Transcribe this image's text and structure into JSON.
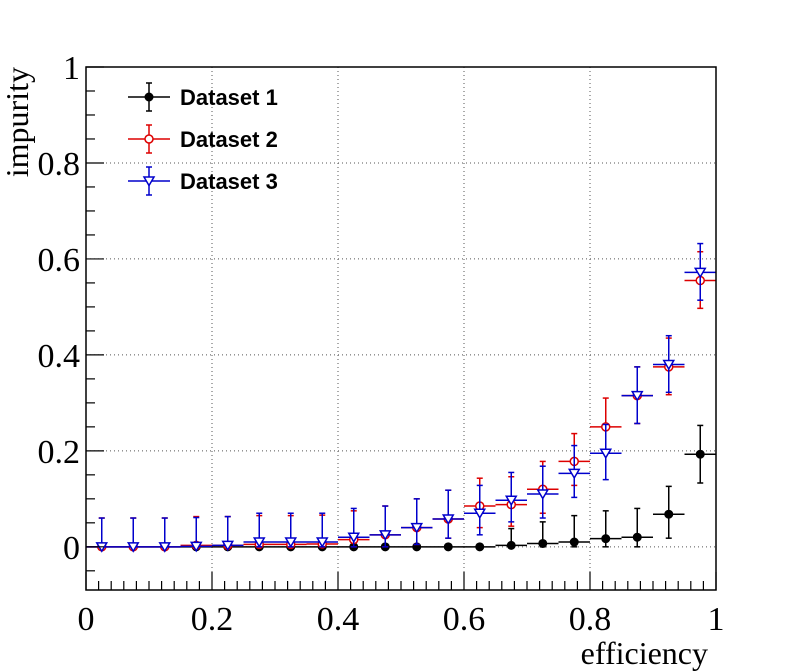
{
  "chart_data": {
    "type": "scatter",
    "xlabel": "efficiency",
    "ylabel": "impurity",
    "xlim": [
      0,
      1
    ],
    "ylim": [
      -0.09,
      1
    ],
    "grid": true,
    "legend_position": "top-left",
    "x_ticks": [
      "0",
      "0.2",
      "0.4",
      "0.6",
      "0.8",
      "1"
    ],
    "y_ticks": [
      "0",
      "0.2",
      "0.4",
      "0.6",
      "0.8",
      "1"
    ],
    "x_tick_values": [
      0,
      0.2,
      0.4,
      0.6,
      0.8,
      1.0
    ],
    "y_tick_values": [
      0,
      0.2,
      0.4,
      0.6,
      0.8,
      1.0
    ],
    "bin_half_width": 0.025,
    "series": [
      {
        "name": "Dataset 1",
        "color": "#000000",
        "marker": "filled-circle",
        "x": [
          0.025,
          0.075,
          0.125,
          0.175,
          0.225,
          0.275,
          0.325,
          0.375,
          0.425,
          0.475,
          0.525,
          0.575,
          0.625,
          0.675,
          0.725,
          0.775,
          0.825,
          0.875,
          0.925,
          0.975
        ],
        "y": [
          0,
          0,
          0,
          0,
          0,
          0,
          0,
          0,
          0,
          0,
          0,
          0,
          0,
          0.003,
          0.007,
          0.01,
          0.017,
          0.02,
          0.068,
          0.193
        ],
        "err_low": [
          0,
          0,
          0,
          0,
          0,
          0,
          0,
          0,
          0,
          0,
          0,
          0,
          0,
          0.003,
          0.007,
          0.01,
          0.017,
          0.02,
          0.05,
          0.06
        ],
        "err_high": [
          0,
          0,
          0,
          0,
          0,
          0,
          0,
          0,
          0,
          0,
          0,
          0,
          0,
          0.035,
          0.045,
          0.055,
          0.058,
          0.06,
          0.058,
          0.06
        ]
      },
      {
        "name": "Dataset 2",
        "color": "#dd0000",
        "marker": "open-circle",
        "x": [
          0.025,
          0.075,
          0.125,
          0.175,
          0.225,
          0.275,
          0.325,
          0.375,
          0.425,
          0.475,
          0.525,
          0.575,
          0.625,
          0.675,
          0.725,
          0.775,
          0.825,
          0.875,
          0.925,
          0.975
        ],
        "y": [
          0,
          0,
          0,
          0.003,
          0.003,
          0.005,
          0.005,
          0.006,
          0.015,
          0.025,
          0.04,
          0.058,
          0.085,
          0.088,
          0.12,
          0.178,
          0.25,
          0.315,
          0.375,
          0.555
        ],
        "err_low": [
          0,
          0,
          0,
          0.003,
          0.003,
          0.005,
          0.005,
          0.006,
          0.015,
          0.025,
          0.035,
          0.04,
          0.045,
          0.045,
          0.05,
          0.05,
          0.055,
          0.058,
          0.058,
          0.058
        ],
        "err_high": [
          0.06,
          0.06,
          0.06,
          0.06,
          0.06,
          0.06,
          0.06,
          0.06,
          0.06,
          0.06,
          0.06,
          0.06,
          0.058,
          0.058,
          0.058,
          0.058,
          0.06,
          0.06,
          0.06,
          0.06
        ]
      },
      {
        "name": "Dataset 3",
        "color": "#0000cc",
        "marker": "open-triangle-down",
        "x": [
          0.025,
          0.075,
          0.125,
          0.175,
          0.225,
          0.275,
          0.325,
          0.375,
          0.425,
          0.475,
          0.525,
          0.575,
          0.625,
          0.675,
          0.725,
          0.775,
          0.825,
          0.875,
          0.925,
          0.975
        ],
        "y": [
          0,
          0,
          0,
          0.001,
          0.003,
          0.01,
          0.01,
          0.01,
          0.02,
          0.025,
          0.04,
          0.058,
          0.07,
          0.097,
          0.11,
          0.153,
          0.195,
          0.315,
          0.38,
          0.572
        ],
        "err_low": [
          0,
          0,
          0,
          0.001,
          0.003,
          0.01,
          0.01,
          0.01,
          0.02,
          0.025,
          0.035,
          0.04,
          0.045,
          0.045,
          0.05,
          0.05,
          0.055,
          0.058,
          0.058,
          0.058
        ],
        "err_high": [
          0.06,
          0.06,
          0.06,
          0.06,
          0.06,
          0.06,
          0.06,
          0.06,
          0.06,
          0.06,
          0.06,
          0.06,
          0.058,
          0.058,
          0.058,
          0.058,
          0.06,
          0.06,
          0.06,
          0.06
        ]
      }
    ]
  }
}
